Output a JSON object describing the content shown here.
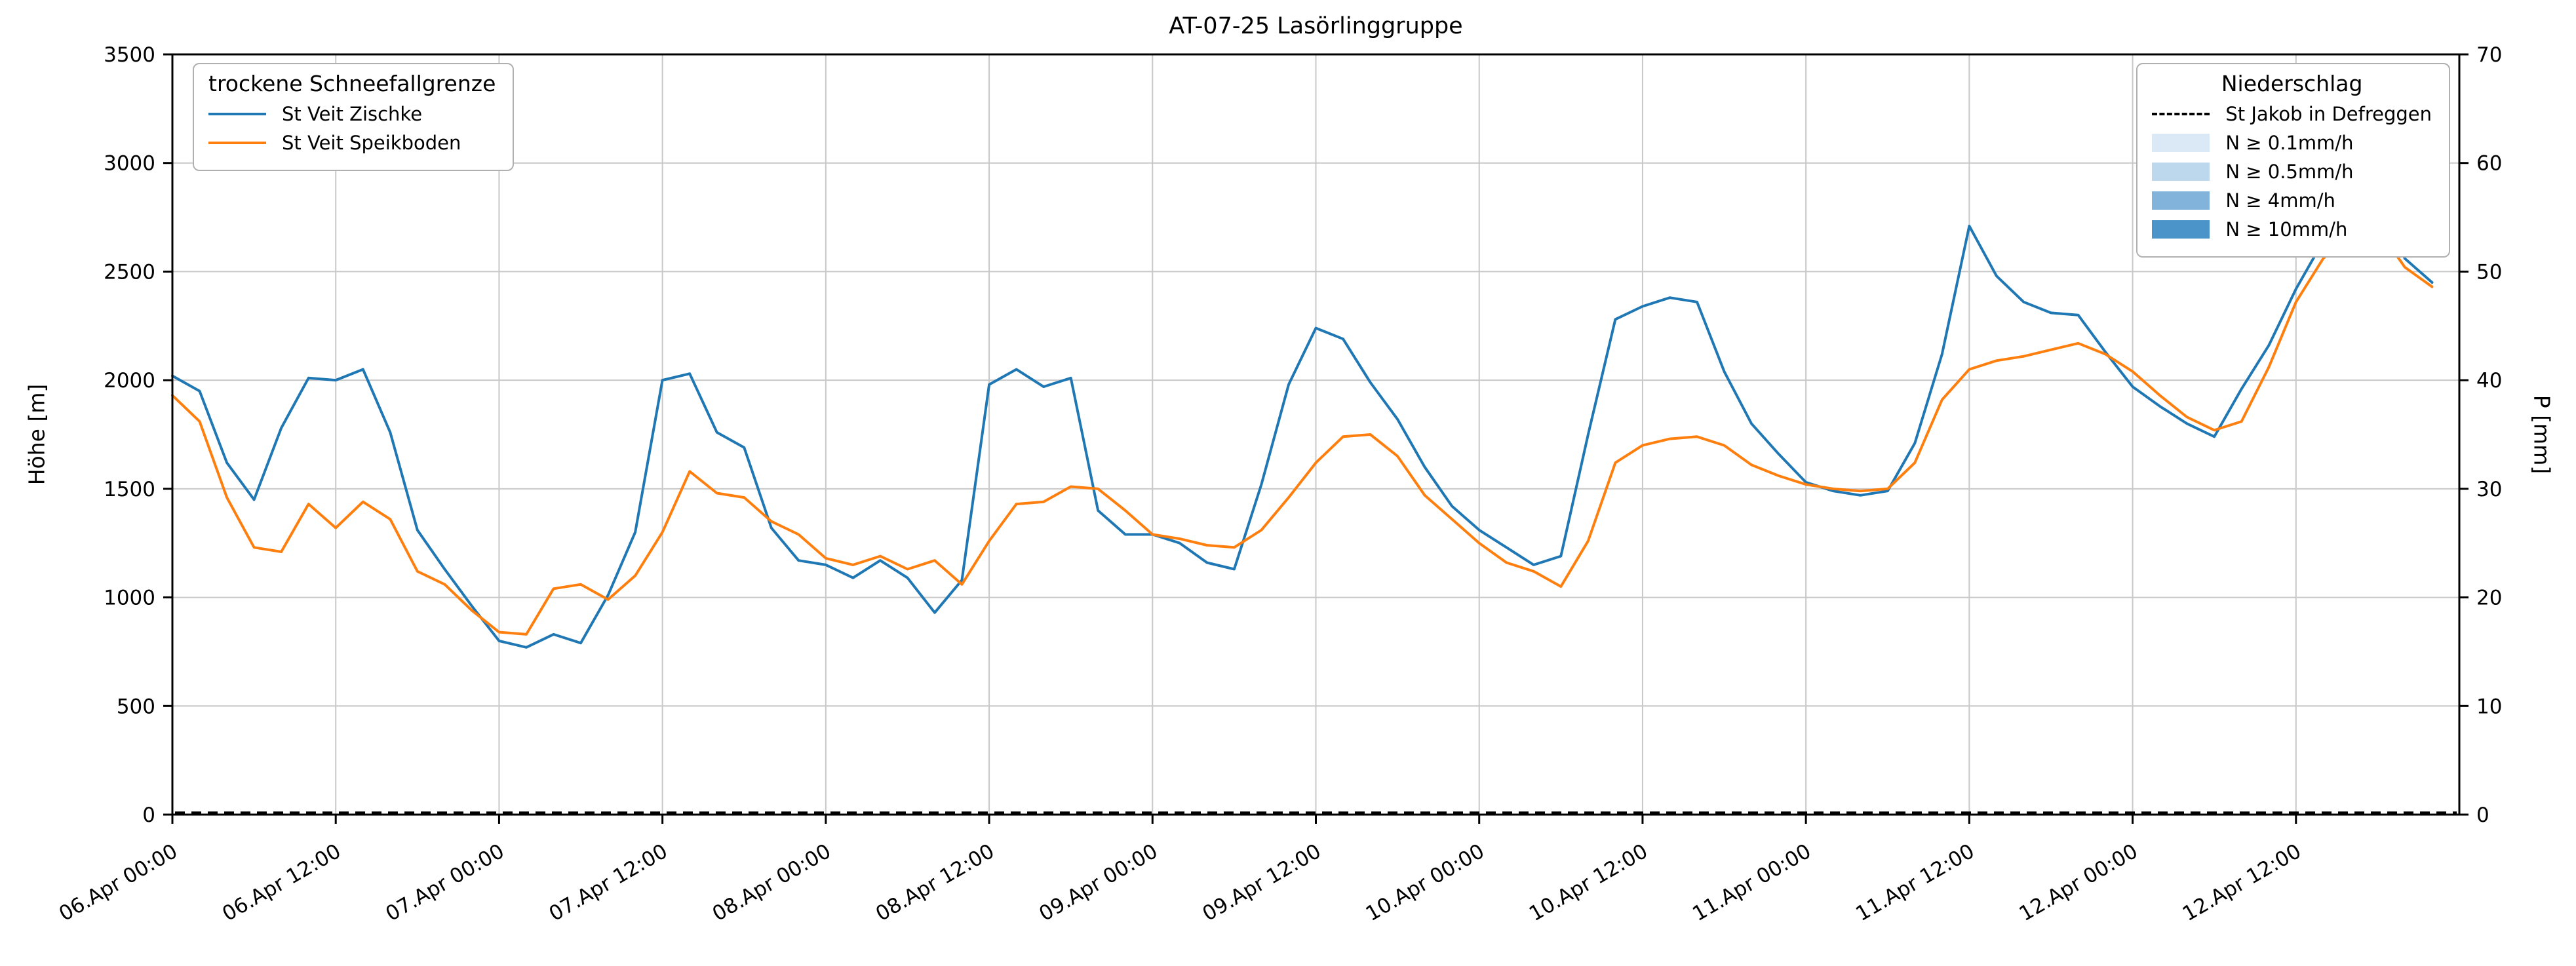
{
  "title": "AT-07-25 Lasörlinggruppe",
  "axes": {
    "y_left": {
      "label": "Höhe [m]",
      "min": 0,
      "max": 3500,
      "ticks": [
        0,
        500,
        1000,
        1500,
        2000,
        2500,
        3000,
        3500
      ]
    },
    "y_right": {
      "label": "P [mm]",
      "min": 0,
      "max": 70,
      "ticks": [
        0,
        10,
        20,
        30,
        40,
        50,
        60,
        70
      ]
    },
    "x": {
      "tick_labels": [
        "06.Apr 00:00",
        "06.Apr 12:00",
        "07.Apr 00:00",
        "07.Apr 12:00",
        "08.Apr 00:00",
        "08.Apr 12:00",
        "09.Apr 00:00",
        "09.Apr 12:00",
        "10.Apr 00:00",
        "10.Apr 12:00",
        "11.Apr 00:00",
        "11.Apr 12:00",
        "12.Apr 00:00",
        "12.Apr 12:00"
      ],
      "tick_hours": [
        0,
        12,
        24,
        36,
        48,
        60,
        72,
        84,
        96,
        108,
        120,
        132,
        144,
        156
      ],
      "hour_min": 0,
      "hour_max": 168
    }
  },
  "legend_snowline": {
    "title": "trockene Schneefallgrenze",
    "items": [
      {
        "label": "St Veit Zischke",
        "color": "#1f77b4"
      },
      {
        "label": "St Veit Speikboden",
        "color": "#ff7f0e"
      }
    ]
  },
  "legend_precip": {
    "title": "Niederschlag",
    "station": {
      "label": "St Jakob in Defreggen",
      "color": "#000000",
      "style": "dashed"
    },
    "levels": [
      {
        "label": "N ≥ 0.1mm/h",
        "color": "#dbe9f6"
      },
      {
        "label": "N ≥ 0.5mm/h",
        "color": "#bdd7ec"
      },
      {
        "label": "N ≥ 4mm/h",
        "color": "#82b3da"
      },
      {
        "label": "N ≥ 10mm/h",
        "color": "#4b94c9"
      }
    ]
  },
  "chart_data": {
    "type": "line",
    "title": "AT-07-25 Lasörlinggruppe",
    "xlabel": "",
    "ylabel_left": "Höhe [m]",
    "ylabel_right": "P [mm]",
    "ylim_left": [
      0,
      3500
    ],
    "ylim_right": [
      0,
      70
    ],
    "grid": true,
    "x_unit": "hours since 06.Apr 00:00",
    "x": [
      0,
      2,
      4,
      6,
      8,
      10,
      12,
      14,
      16,
      18,
      20,
      22,
      24,
      26,
      28,
      30,
      32,
      34,
      36,
      38,
      40,
      42,
      44,
      46,
      48,
      50,
      52,
      54,
      56,
      58,
      60,
      62,
      64,
      66,
      68,
      70,
      72,
      74,
      76,
      78,
      80,
      82,
      84,
      86,
      88,
      90,
      92,
      94,
      96,
      98,
      100,
      102,
      104,
      106,
      108,
      110,
      112,
      114,
      116,
      118,
      120,
      122,
      124,
      126,
      128,
      130,
      132,
      134,
      136,
      138,
      140,
      142,
      144,
      146,
      148,
      150,
      152,
      154,
      156,
      158,
      160,
      162,
      164,
      166
    ],
    "series": [
      {
        "name": "St Veit Zischke",
        "color": "#1f77b4",
        "axis": "left",
        "values": [
          2020,
          1950,
          1620,
          1450,
          1780,
          2010,
          2000,
          2050,
          1760,
          1310,
          1130,
          960,
          800,
          770,
          830,
          790,
          1010,
          1300,
          2000,
          2030,
          1760,
          1690,
          1320,
          1170,
          1150,
          1090,
          1170,
          1090,
          930,
          1080,
          1980,
          2050,
          1970,
          2010,
          1400,
          1290,
          1290,
          1250,
          1160,
          1130,
          1520,
          1980,
          2240,
          2190,
          1990,
          1820,
          1600,
          1420,
          1310,
          1230,
          1150,
          1190,
          1750,
          2280,
          2340,
          2380,
          2360,
          2040,
          1800,
          1660,
          1530,
          1490,
          1470,
          1490,
          1710,
          2120,
          2710,
          2480,
          2360,
          2310,
          2300,
          2130,
          1970,
          1880,
          1800,
          1740,
          1960,
          2160,
          2420,
          2640,
          2900,
          2820,
          2560,
          2450
        ]
      },
      {
        "name": "St Veit Speikboden",
        "color": "#ff7f0e",
        "axis": "left",
        "values": [
          1930,
          1810,
          1460,
          1230,
          1210,
          1430,
          1320,
          1440,
          1360,
          1120,
          1060,
          940,
          840,
          830,
          1040,
          1060,
          990,
          1100,
          1300,
          1580,
          1480,
          1460,
          1350,
          1290,
          1180,
          1150,
          1190,
          1130,
          1170,
          1060,
          1260,
          1430,
          1440,
          1510,
          1500,
          1400,
          1290,
          1270,
          1240,
          1230,
          1310,
          1460,
          1620,
          1740,
          1750,
          1650,
          1470,
          1360,
          1250,
          1160,
          1120,
          1050,
          1260,
          1620,
          1700,
          1730,
          1740,
          1700,
          1610,
          1560,
          1520,
          1500,
          1490,
          1500,
          1620,
          1910,
          2050,
          2090,
          2110,
          2140,
          2170,
          2120,
          2040,
          1930,
          1830,
          1770,
          1810,
          2060,
          2360,
          2560,
          2680,
          2700,
          2520,
          2430
        ]
      }
    ],
    "precipitation": {
      "name": "St Jakob in Defreggen",
      "axis": "right",
      "style": "dashed",
      "color": "#000000",
      "constant_value": 0
    }
  }
}
